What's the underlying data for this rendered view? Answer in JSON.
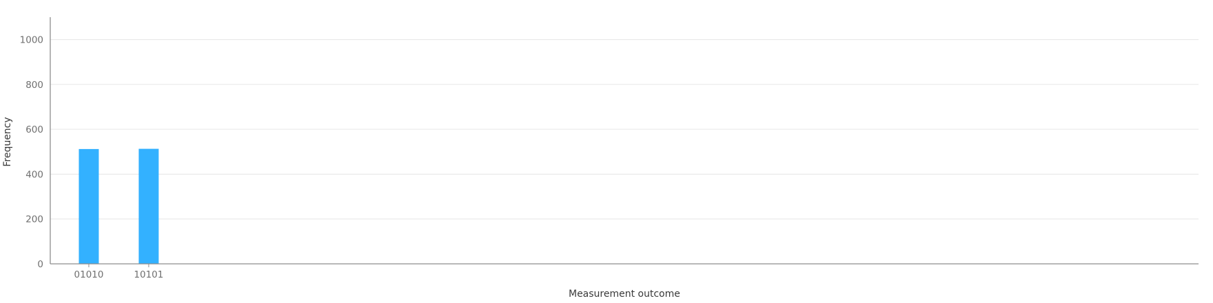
{
  "chart_data": {
    "type": "bar",
    "title": "",
    "xlabel": "Measurement outcome",
    "ylabel": "Frequency",
    "categories": [
      "01010",
      "10101"
    ],
    "values": [
      512,
      513
    ],
    "ylim": [
      0,
      1100
    ],
    "yticks": [
      0,
      200,
      400,
      600,
      800,
      1000
    ],
    "grid": true,
    "legend": "none",
    "bar_color": "#33b1ff",
    "grid_color": "#e6e6e6",
    "axis_color": "#8d8d8d"
  }
}
